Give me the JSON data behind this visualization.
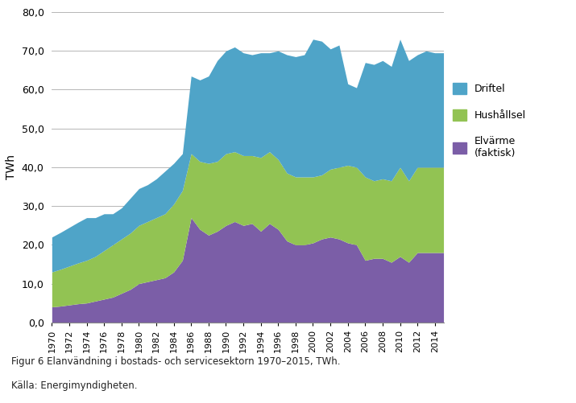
{
  "years": [
    1970,
    1971,
    1972,
    1973,
    1974,
    1975,
    1976,
    1977,
    1978,
    1979,
    1980,
    1981,
    1982,
    1983,
    1984,
    1985,
    1986,
    1987,
    1988,
    1989,
    1990,
    1991,
    1992,
    1993,
    1994,
    1995,
    1996,
    1997,
    1998,
    1999,
    2000,
    2001,
    2002,
    2003,
    2004,
    2005,
    2006,
    2007,
    2008,
    2009,
    2010,
    2011,
    2012,
    2013,
    2014,
    2015
  ],
  "elvarme": [
    4.0,
    4.2,
    4.5,
    4.8,
    5.0,
    5.5,
    6.0,
    6.5,
    7.5,
    8.5,
    10.0,
    10.5,
    11.0,
    11.5,
    13.0,
    16.0,
    27.0,
    24.0,
    22.5,
    23.5,
    25.0,
    26.0,
    25.0,
    25.5,
    23.5,
    25.5,
    24.0,
    21.0,
    20.0,
    20.0,
    20.5,
    21.5,
    22.0,
    21.5,
    20.5,
    20.0,
    16.0,
    16.5,
    16.5,
    15.5,
    17.0,
    15.5,
    18.0,
    18.0,
    18.0,
    18.0
  ],
  "hushallsel": [
    9.0,
    9.5,
    10.0,
    10.5,
    11.0,
    11.5,
    12.5,
    13.5,
    14.0,
    14.5,
    15.0,
    15.5,
    16.0,
    16.5,
    17.5,
    18.0,
    16.5,
    17.5,
    18.5,
    18.0,
    18.5,
    18.0,
    18.0,
    17.5,
    19.0,
    18.5,
    18.0,
    17.5,
    17.5,
    17.5,
    17.0,
    16.5,
    17.5,
    18.5,
    20.0,
    20.0,
    21.5,
    20.0,
    20.5,
    21.0,
    23.0,
    21.0,
    22.0,
    22.0,
    22.0,
    22.0
  ],
  "driftel": [
    9.0,
    9.5,
    10.0,
    10.5,
    11.0,
    10.0,
    9.5,
    8.0,
    8.0,
    9.0,
    9.5,
    9.5,
    10.0,
    11.0,
    10.5,
    9.5,
    20.0,
    21.0,
    22.5,
    26.0,
    26.5,
    27.0,
    26.5,
    26.0,
    27.0,
    25.5,
    28.0,
    30.5,
    31.0,
    31.5,
    35.5,
    34.5,
    31.0,
    31.5,
    21.0,
    20.5,
    29.5,
    30.0,
    30.5,
    29.5,
    33.0,
    31.0,
    29.0,
    30.0,
    29.5,
    29.5
  ],
  "color_elvarme": "#7B5EA7",
  "color_hushallsel": "#92C353",
  "color_driftel": "#4FA4C8",
  "ylabel": "TWh",
  "ylim": [
    0,
    80
  ],
  "yticks": [
    0,
    10,
    20,
    30,
    40,
    50,
    60,
    70,
    80
  ],
  "caption1": "Figur 6 Elanvändning i bostads- och servicesektorn 1970–2015, TWh.",
  "caption2": "Källa: Energimyndigheten.",
  "legend_labels": [
    "Driftel",
    "Hushållsel",
    "Elvärme\n(faktisk)"
  ]
}
